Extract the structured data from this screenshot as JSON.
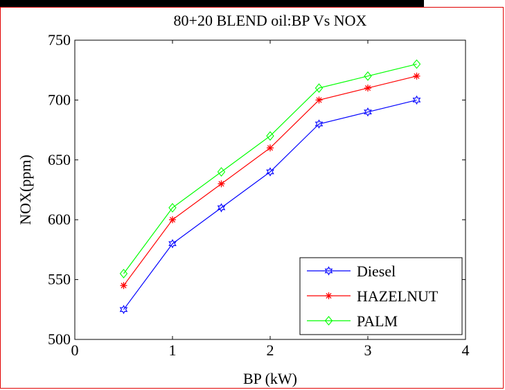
{
  "chart_data": {
    "type": "line",
    "title": "80+20 BLEND oil:BP Vs NOX",
    "xlabel": "BP (kW)",
    "ylabel": "NOX(ppm)",
    "xlim": [
      0,
      4
    ],
    "ylim": [
      500,
      750
    ],
    "xticks": [
      0,
      1,
      2,
      3,
      4
    ],
    "yticks": [
      500,
      550,
      600,
      650,
      700,
      750
    ],
    "x": [
      0.5,
      1.0,
      1.5,
      2.0,
      2.5,
      3.0,
      3.5
    ],
    "grid": false,
    "legend_position": "bottom-right",
    "series": [
      {
        "name": "Diesel",
        "color": "#0000ff",
        "marker": "hexagram",
        "values": [
          525,
          580,
          610,
          640,
          680,
          690,
          700
        ]
      },
      {
        "name": "HAZELNUT",
        "color": "#ff0000",
        "marker": "asterisk",
        "values": [
          545,
          600,
          630,
          660,
          700,
          710,
          720
        ]
      },
      {
        "name": "PALM",
        "color": "#00ff00",
        "marker": "diamond",
        "values": [
          555,
          610,
          640,
          670,
          710,
          720,
          730
        ]
      }
    ]
  }
}
